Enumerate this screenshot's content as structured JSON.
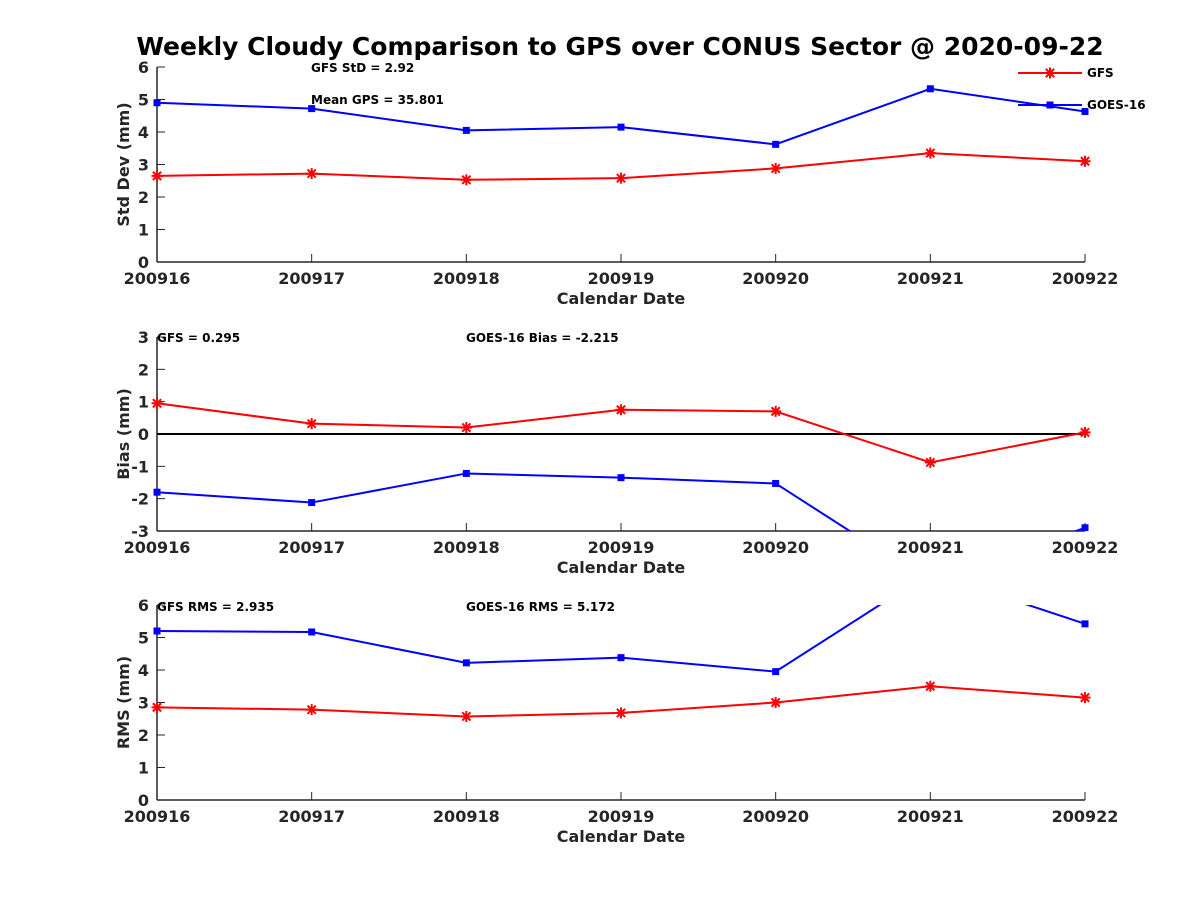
{
  "chart_data": {
    "title": "Weekly Cloudy Comparison to GPS over CONUS Sector @ 2020-09-22",
    "categories": [
      "200916",
      "200917",
      "200918",
      "200919",
      "200920",
      "200921",
      "200922"
    ],
    "legend": {
      "placement": "top-right",
      "entries": [
        {
          "name": "GFS",
          "color": "#ff0000",
          "marker": "asterisk"
        },
        {
          "name": "GOES-16",
          "color": "#0000ff",
          "marker": "square"
        }
      ]
    },
    "panels": [
      {
        "type": "line",
        "ylabel": "Std Dev (mm)",
        "xlabel": "Calendar Date",
        "ylim": [
          0,
          6
        ],
        "yticks": [
          0,
          1,
          2,
          3,
          4,
          5,
          6
        ],
        "zero_line": false,
        "annotations": [
          "GFS StD = 2.92",
          "Mean GPS = 35.801"
        ],
        "series": [
          {
            "name": "GFS",
            "color": "#ff0000",
            "marker": "asterisk",
            "values": [
              2.65,
              2.72,
              2.53,
              2.58,
              2.88,
              3.35,
              3.1
            ]
          },
          {
            "name": "GOES-16",
            "color": "#0000ff",
            "marker": "square",
            "values": [
              4.9,
              4.72,
              4.05,
              4.15,
              3.62,
              5.33,
              4.63
            ]
          }
        ]
      },
      {
        "type": "line",
        "ylabel": "Bias (mm)",
        "xlabel": "Calendar Date",
        "ylim": [
          -3,
          3
        ],
        "yticks": [
          -3,
          -2,
          -1,
          0,
          1,
          2,
          3
        ],
        "zero_line": true,
        "annotations": [
          "GFS = 0.295",
          "GOES-16 Bias  = -2.215"
        ],
        "series": [
          {
            "name": "GFS",
            "color": "#ff0000",
            "marker": "asterisk",
            "values": [
              0.95,
              0.32,
              0.2,
              0.75,
              0.7,
              -0.88,
              0.05
            ]
          },
          {
            "name": "GOES-16",
            "color": "#0000ff",
            "marker": "square",
            "values": [
              -1.8,
              -2.12,
              -1.22,
              -1.35,
              -1.53,
              -4.6,
              -2.9
            ]
          }
        ]
      },
      {
        "type": "line",
        "ylabel": "RMS (mm)",
        "xlabel": "Calendar Date",
        "ylim": [
          0,
          6
        ],
        "yticks": [
          0,
          1,
          2,
          3,
          4,
          5,
          6
        ],
        "zero_line": false,
        "annotations": [
          "GFS RMS = 2.935",
          "GOES-16 RMS = 5.172"
        ],
        "series": [
          {
            "name": "GFS",
            "color": "#ff0000",
            "marker": "asterisk",
            "values": [
              2.85,
              2.78,
              2.57,
              2.68,
              3.0,
              3.5,
              3.15
            ]
          },
          {
            "name": "GOES-16",
            "color": "#0000ff",
            "marker": "square",
            "values": [
              5.2,
              5.17,
              4.22,
              4.38,
              3.95,
              7.0,
              5.42
            ]
          }
        ]
      }
    ]
  }
}
